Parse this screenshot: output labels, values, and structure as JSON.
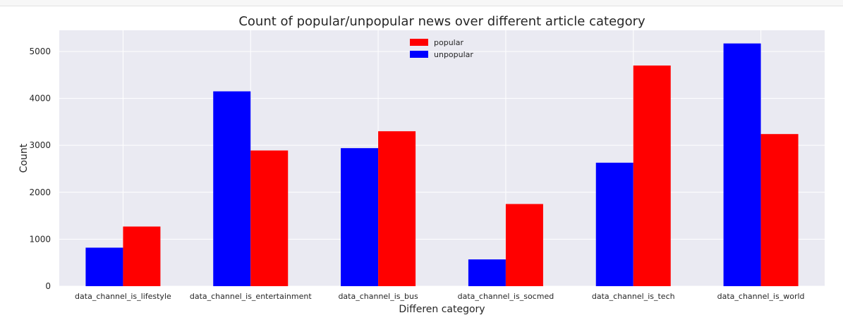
{
  "chart_data": {
    "type": "bar",
    "title": "Count of popular/unpopular news over different article category",
    "xlabel": "Differen category",
    "ylabel": "Count",
    "categories": [
      "data_channel_is_lifestyle",
      "data_channel_is_entertainment",
      "data_channel_is_bus",
      "data_channel_is_socmed",
      "data_channel_is_tech",
      "data_channel_is_world"
    ],
    "series": [
      {
        "name": "unpopular",
        "color": "#0000ff",
        "values": [
          820,
          4150,
          2940,
          570,
          2630,
          5170
        ]
      },
      {
        "name": "popular",
        "color": "#ff0000",
        "values": [
          1270,
          2890,
          3300,
          1750,
          4700,
          3240
        ]
      }
    ],
    "legend_order": [
      "popular",
      "unpopular"
    ],
    "legend_position": "top-center",
    "ylim": [
      0,
      5450
    ],
    "yticks": [
      0,
      1000,
      2000,
      3000,
      4000,
      5000
    ],
    "grid": true,
    "background": "#eaeaf2"
  }
}
